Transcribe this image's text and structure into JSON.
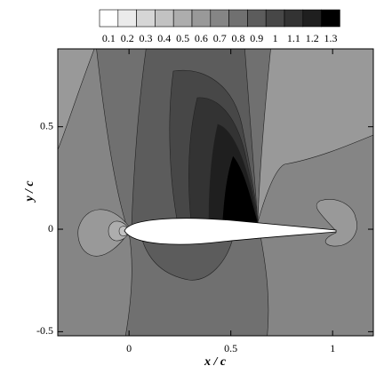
{
  "chart_data": {
    "type": "contour",
    "colorbar": {
      "levels": [
        0.1,
        0.2,
        0.3,
        0.4,
        0.5,
        0.6,
        0.7,
        0.8,
        0.9,
        1,
        1.1,
        1.2,
        1.3
      ],
      "colors": [
        "#ffffff",
        "#ebebeb",
        "#d6d6d6",
        "#c2c2c2",
        "#adadad",
        "#999999",
        "#858585",
        "#707070",
        "#5c5c5c",
        "#474747",
        "#333333",
        "#1f1f1f",
        "#000000"
      ]
    },
    "xlabel": "x / c",
    "ylabel": "y / c",
    "xlim": [
      -0.35,
      1.2
    ],
    "ylim": [
      -0.52,
      0.88
    ],
    "xticks": [
      0,
      0.5,
      1
    ],
    "yticks": [
      -0.5,
      0,
      0.5
    ]
  }
}
